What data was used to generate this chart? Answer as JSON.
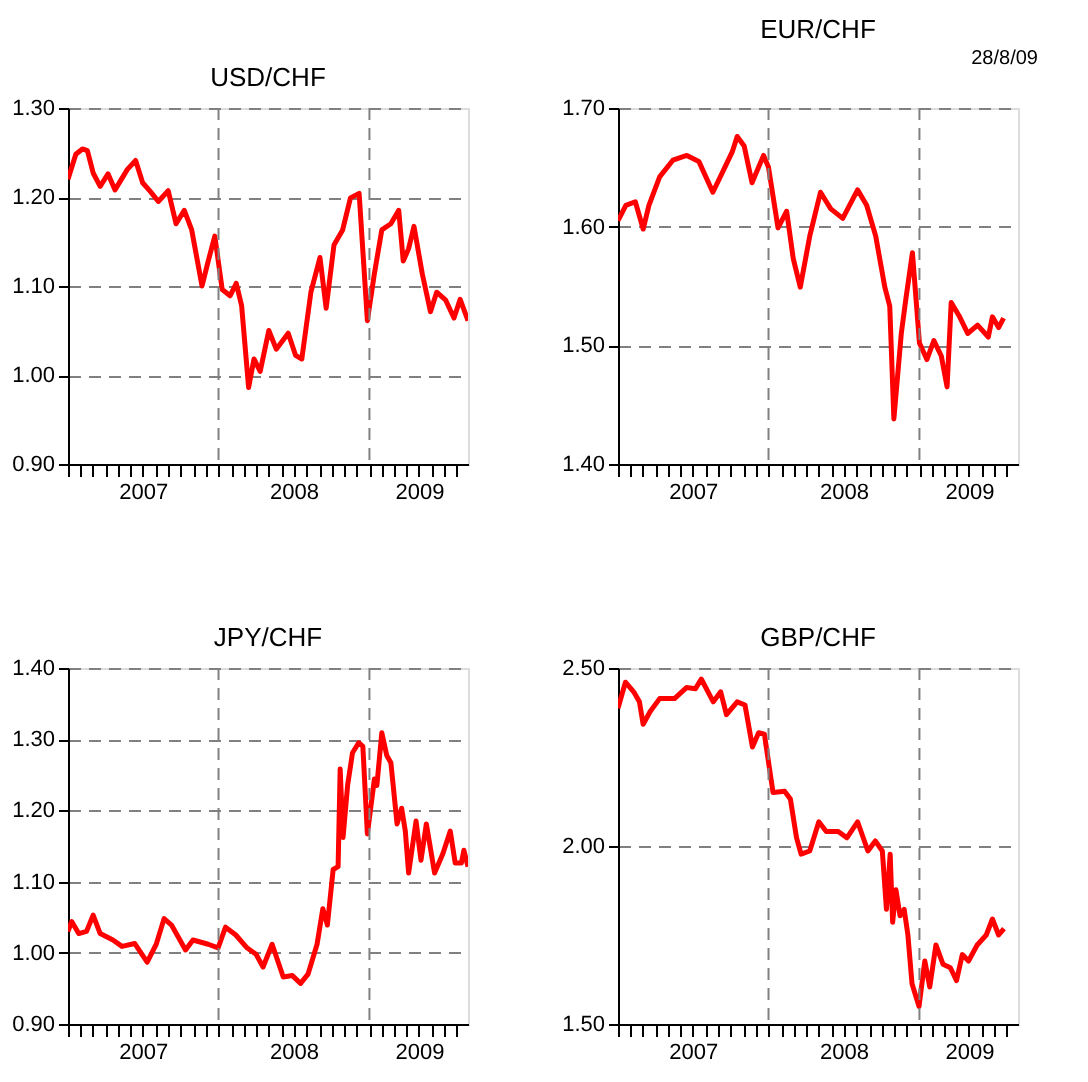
{
  "chart_data": [
    {
      "type": "line",
      "title": "USD/CHF",
      "xlim": [
        "2007-01-01",
        "2009-08-28"
      ],
      "x": [
        "2007-01-01",
        "2007-01-20",
        "2007-02-05",
        "2007-02-17",
        "2007-03-03",
        "2007-03-20",
        "2007-04-08",
        "2007-04-25",
        "2007-05-25",
        "2007-06-14",
        "2007-07-01",
        "2007-07-20",
        "2007-08-08",
        "2007-09-01",
        "2007-09-20",
        "2007-10-10",
        "2007-10-28",
        "2007-11-22",
        "2007-12-07",
        "2007-12-23",
        "2008-01-10",
        "2008-01-29",
        "2008-02-13",
        "2008-02-26",
        "2008-03-14",
        "2008-03-27",
        "2008-04-11",
        "2008-05-02",
        "2008-05-20",
        "2008-06-18",
        "2008-07-06",
        "2008-07-21",
        "2008-08-12",
        "2008-09-03",
        "2008-09-18",
        "2008-10-07",
        "2008-10-28",
        "2008-11-16",
        "2008-12-07",
        "2008-12-27",
        "2009-01-13",
        "2009-01-31",
        "2009-02-22",
        "2009-03-13",
        "2009-03-24",
        "2009-04-06",
        "2009-04-19",
        "2009-05-09",
        "2009-05-29",
        "2009-06-13",
        "2009-07-05",
        "2009-07-25",
        "2009-08-09",
        "2009-08-28"
      ],
      "series": [
        {
          "color": "#ff0000",
          "values": [
            1.22,
            1.248,
            1.254,
            1.252,
            1.227,
            1.212,
            1.226,
            1.208,
            1.231,
            1.241,
            1.216,
            1.206,
            1.195,
            1.207,
            1.17,
            1.185,
            1.163,
            1.1,
            1.128,
            1.156,
            1.096,
            1.089,
            1.103,
            1.078,
            0.986,
            1.018,
            1.004,
            1.05,
            1.029,
            1.047,
            1.022,
            1.018,
            1.093,
            1.132,
            1.075,
            1.146,
            1.163,
            1.199,
            1.204,
            1.061,
            1.114,
            1.163,
            1.17,
            1.185,
            1.128,
            1.142,
            1.167,
            1.114,
            1.071,
            1.093,
            1.084,
            1.064,
            1.085,
            1.061
          ]
        }
      ],
      "ylim": [
        0.9,
        1.3
      ],
      "yticks": [
        {
          "value": 0.9,
          "label": "0.90"
        },
        {
          "value": 1.0,
          "label": "1.00"
        },
        {
          "value": 1.1,
          "label": "1.10"
        },
        {
          "value": 1.2,
          "label": "1.20"
        },
        {
          "value": 1.3,
          "label": "1.30"
        }
      ],
      "xticks": [
        {
          "value": "2007-01-01",
          "label": null
        },
        {
          "value": "2007-02-01",
          "label": null
        },
        {
          "value": "2007-03-01",
          "label": null
        },
        {
          "value": "2007-04-01",
          "label": null
        },
        {
          "value": "2007-05-01",
          "label": null
        },
        {
          "value": "2007-06-01",
          "label": null
        },
        {
          "value": "2007-07-01",
          "label": "2007"
        },
        {
          "value": "2007-08-01",
          "label": null
        },
        {
          "value": "2007-09-01",
          "label": null
        },
        {
          "value": "2007-10-01",
          "label": null
        },
        {
          "value": "2007-11-01",
          "label": null
        },
        {
          "value": "2007-12-01",
          "label": null
        },
        {
          "value": "2008-01-01",
          "label": null
        },
        {
          "value": "2008-02-01",
          "label": null
        },
        {
          "value": "2008-03-01",
          "label": null
        },
        {
          "value": "2008-04-01",
          "label": null
        },
        {
          "value": "2008-05-01",
          "label": null
        },
        {
          "value": "2008-06-01",
          "label": null
        },
        {
          "value": "2008-07-01",
          "label": "2008"
        },
        {
          "value": "2008-08-01",
          "label": null
        },
        {
          "value": "2008-09-01",
          "label": null
        },
        {
          "value": "2008-10-01",
          "label": null
        },
        {
          "value": "2008-11-01",
          "label": null
        },
        {
          "value": "2008-12-01",
          "label": null
        },
        {
          "value": "2009-01-01",
          "label": null
        },
        {
          "value": "2009-02-01",
          "label": null
        },
        {
          "value": "2009-03-01",
          "label": null
        },
        {
          "value": "2009-04-01",
          "label": null
        },
        {
          "value": "2009-05-01",
          "label": "2009"
        },
        {
          "value": "2009-06-01",
          "label": null
        },
        {
          "value": "2009-07-01",
          "label": null
        },
        {
          "value": "2009-08-01",
          "label": null
        }
      ],
      "grid": "y",
      "ref_lines": [
        {
          "axis": "x",
          "value": "2008-01-01",
          "color": "#808080",
          "line_style": "dashed"
        },
        {
          "axis": "x",
          "value": "2009-01-01",
          "color": "#808080",
          "line_style": "dashed"
        }
      ],
      "line_style": "solid"
    },
    {
      "type": "line",
      "title": "EUR/CHF",
      "annotations": [
        "28/8/09"
      ],
      "xlim": [
        "2007-01-01",
        "2009-08-28"
      ],
      "x": [
        "2007-01-01",
        "2007-01-20",
        "2007-02-12",
        "2007-03-03",
        "2007-03-17",
        "2007-04-12",
        "2007-05-14",
        "2007-06-17",
        "2007-07-16",
        "2007-08-19",
        "2007-09-13",
        "2007-10-05",
        "2007-10-17",
        "2007-11-03",
        "2007-11-22",
        "2007-12-20",
        "2008-01-01",
        "2008-01-24",
        "2008-02-14",
        "2008-03-01",
        "2008-03-18",
        "2008-04-10",
        "2008-05-06",
        "2008-05-31",
        "2008-06-29",
        "2008-08-04",
        "2008-08-26",
        "2008-09-17",
        "2008-10-09",
        "2008-10-21",
        "2008-10-31",
        "2008-11-18",
        "2008-11-29",
        "2008-12-15",
        "2009-01-01",
        "2009-01-19",
        "2009-02-05",
        "2009-02-23",
        "2009-03-09",
        "2009-03-19",
        "2009-04-07",
        "2009-04-28",
        "2009-05-22",
        "2009-06-17",
        "2009-06-27",
        "2009-07-12",
        "2009-07-24"
      ],
      "series": [
        {
          "color": "#ff0000",
          "values": [
            1.605,
            1.618,
            1.621,
            1.598,
            1.618,
            1.642,
            1.656,
            1.66,
            1.655,
            1.629,
            1.647,
            1.663,
            1.676,
            1.668,
            1.637,
            1.66,
            1.65,
            1.599,
            1.613,
            1.573,
            1.549,
            1.592,
            1.629,
            1.615,
            1.607,
            1.631,
            1.618,
            1.592,
            1.549,
            1.533,
            1.438,
            1.51,
            1.539,
            1.578,
            1.502,
            1.488,
            1.504,
            1.491,
            1.465,
            1.536,
            1.525,
            1.51,
            1.517,
            1.507,
            1.524,
            1.515,
            1.523
          ]
        }
      ],
      "ylim": [
        1.4,
        1.7
      ],
      "yticks": [
        {
          "value": 1.4,
          "label": "1.40"
        },
        {
          "value": 1.5,
          "label": "1.50"
        },
        {
          "value": 1.6,
          "label": "1.60"
        },
        {
          "value": 1.7,
          "label": "1.70"
        }
      ],
      "xticks": [
        {
          "value": "2007-01-01",
          "label": null
        },
        {
          "value": "2007-02-01",
          "label": null
        },
        {
          "value": "2007-03-01",
          "label": null
        },
        {
          "value": "2007-04-01",
          "label": null
        },
        {
          "value": "2007-05-01",
          "label": null
        },
        {
          "value": "2007-06-01",
          "label": null
        },
        {
          "value": "2007-07-01",
          "label": "2007"
        },
        {
          "value": "2007-08-01",
          "label": null
        },
        {
          "value": "2007-09-01",
          "label": null
        },
        {
          "value": "2007-10-01",
          "label": null
        },
        {
          "value": "2007-11-01",
          "label": null
        },
        {
          "value": "2007-12-01",
          "label": null
        },
        {
          "value": "2008-01-01",
          "label": null
        },
        {
          "value": "2008-02-01",
          "label": null
        },
        {
          "value": "2008-03-01",
          "label": null
        },
        {
          "value": "2008-04-01",
          "label": null
        },
        {
          "value": "2008-05-01",
          "label": null
        },
        {
          "value": "2008-06-01",
          "label": null
        },
        {
          "value": "2008-07-01",
          "label": "2008"
        },
        {
          "value": "2008-08-01",
          "label": null
        },
        {
          "value": "2008-09-01",
          "label": null
        },
        {
          "value": "2008-10-01",
          "label": null
        },
        {
          "value": "2008-11-01",
          "label": null
        },
        {
          "value": "2008-12-01",
          "label": null
        },
        {
          "value": "2009-01-01",
          "label": null
        },
        {
          "value": "2009-02-01",
          "label": null
        },
        {
          "value": "2009-03-01",
          "label": null
        },
        {
          "value": "2009-04-01",
          "label": null
        },
        {
          "value": "2009-05-01",
          "label": "2009"
        },
        {
          "value": "2009-06-01",
          "label": null
        },
        {
          "value": "2009-07-01",
          "label": null
        },
        {
          "value": "2009-08-01",
          "label": null
        }
      ],
      "grid": "y",
      "ref_lines": [
        {
          "axis": "x",
          "value": "2008-01-01",
          "color": "#808080",
          "line_style": "dashed"
        },
        {
          "axis": "x",
          "value": "2009-01-01",
          "color": "#808080",
          "line_style": "dashed"
        }
      ],
      "line_style": "solid"
    },
    {
      "type": "line",
      "title": "JPY/CHF",
      "xlim": [
        "2007-01-01",
        "2009-08-28"
      ],
      "x": [
        "2007-01-01",
        "2007-01-10",
        "2007-01-27",
        "2007-02-15",
        "2007-03-03",
        "2007-03-20",
        "2007-04-20",
        "2007-05-12",
        "2007-06-12",
        "2007-07-12",
        "2007-08-03",
        "2007-08-22",
        "2007-09-09",
        "2007-10-13",
        "2007-10-31",
        "2007-12-07",
        "2007-12-31",
        "2008-01-18",
        "2008-02-12",
        "2008-03-10",
        "2008-04-01",
        "2008-04-18",
        "2008-05-10",
        "2008-06-06",
        "2008-06-28",
        "2008-07-18",
        "2008-08-05",
        "2008-08-27",
        "2008-09-10",
        "2008-09-21",
        "2008-10-05",
        "2008-10-17",
        "2008-10-22",
        "2008-10-29",
        "2008-11-09",
        "2008-11-21",
        "2008-12-06",
        "2008-12-16",
        "2008-12-27",
        "2009-01-13",
        "2009-01-19",
        "2009-01-31",
        "2009-02-12",
        "2009-02-22",
        "2009-03-09",
        "2009-03-20",
        "2009-03-29",
        "2009-04-06",
        "2009-04-24",
        "2009-05-06",
        "2009-05-19",
        "2009-06-08",
        "2009-06-28",
        "2009-07-16",
        "2009-07-28",
        "2009-08-12",
        "2009-08-18",
        "2009-08-28"
      ],
      "series": [
        {
          "color": "#ff0000",
          "values": [
            1.03,
            1.044,
            1.027,
            1.03,
            1.053,
            1.027,
            1.018,
            1.009,
            1.013,
            0.987,
            1.012,
            1.048,
            1.039,
            1.004,
            1.018,
            1.012,
            1.007,
            1.036,
            1.025,
            1.007,
            0.998,
            0.98,
            1.012,
            0.966,
            0.968,
            0.957,
            0.97,
            1.012,
            1.062,
            1.039,
            1.117,
            1.121,
            1.258,
            1.162,
            1.235,
            1.281,
            1.295,
            1.29,
            1.167,
            1.244,
            1.235,
            1.309,
            1.277,
            1.267,
            1.181,
            1.203,
            1.171,
            1.112,
            1.185,
            1.13,
            1.181,
            1.112,
            1.139,
            1.171,
            1.126,
            1.126,
            1.144,
            1.121
          ]
        }
      ],
      "ylim": [
        0.9,
        1.4
      ],
      "yticks": [
        {
          "value": 0.9,
          "label": "0.90"
        },
        {
          "value": 1.0,
          "label": "1.00"
        },
        {
          "value": 1.1,
          "label": "1.10"
        },
        {
          "value": 1.2,
          "label": "1.20"
        },
        {
          "value": 1.3,
          "label": "1.30"
        },
        {
          "value": 1.4,
          "label": "1.40"
        }
      ],
      "xticks": [
        {
          "value": "2007-01-01",
          "label": null
        },
        {
          "value": "2007-02-01",
          "label": null
        },
        {
          "value": "2007-03-01",
          "label": null
        },
        {
          "value": "2007-04-01",
          "label": null
        },
        {
          "value": "2007-05-01",
          "label": null
        },
        {
          "value": "2007-06-01",
          "label": null
        },
        {
          "value": "2007-07-01",
          "label": "2007"
        },
        {
          "value": "2007-08-01",
          "label": null
        },
        {
          "value": "2007-09-01",
          "label": null
        },
        {
          "value": "2007-10-01",
          "label": null
        },
        {
          "value": "2007-11-01",
          "label": null
        },
        {
          "value": "2007-12-01",
          "label": null
        },
        {
          "value": "2008-01-01",
          "label": null
        },
        {
          "value": "2008-02-01",
          "label": null
        },
        {
          "value": "2008-03-01",
          "label": null
        },
        {
          "value": "2008-04-01",
          "label": null
        },
        {
          "value": "2008-05-01",
          "label": null
        },
        {
          "value": "2008-06-01",
          "label": null
        },
        {
          "value": "2008-07-01",
          "label": "2008"
        },
        {
          "value": "2008-08-01",
          "label": null
        },
        {
          "value": "2008-09-01",
          "label": null
        },
        {
          "value": "2008-10-01",
          "label": null
        },
        {
          "value": "2008-11-01",
          "label": null
        },
        {
          "value": "2008-12-01",
          "label": null
        },
        {
          "value": "2009-01-01",
          "label": null
        },
        {
          "value": "2009-02-01",
          "label": null
        },
        {
          "value": "2009-03-01",
          "label": null
        },
        {
          "value": "2009-04-01",
          "label": null
        },
        {
          "value": "2009-05-01",
          "label": "2009"
        },
        {
          "value": "2009-06-01",
          "label": null
        },
        {
          "value": "2009-07-01",
          "label": null
        },
        {
          "value": "2009-08-01",
          "label": null
        }
      ],
      "grid": "y",
      "ref_lines": [
        {
          "axis": "x",
          "value": "2008-01-01",
          "color": "#808080",
          "line_style": "dashed"
        },
        {
          "axis": "x",
          "value": "2009-01-01",
          "color": "#808080",
          "line_style": "dashed"
        }
      ],
      "line_style": "solid"
    },
    {
      "type": "line",
      "title": "GBP/CHF",
      "xlim": [
        "2007-01-01",
        "2009-08-28"
      ],
      "x": [
        "2007-01-01",
        "2007-01-19",
        "2007-02-08",
        "2007-02-22",
        "2007-03-03",
        "2007-03-20",
        "2007-04-12",
        "2007-05-18",
        "2007-06-16",
        "2007-07-08",
        "2007-07-22",
        "2007-08-20",
        "2007-09-07",
        "2007-09-21",
        "2007-10-17",
        "2007-11-05",
        "2007-11-23",
        "2007-12-08",
        "2007-12-22",
        "2008-01-12",
        "2008-02-09",
        "2008-02-23",
        "2008-03-09",
        "2008-03-20",
        "2008-04-10",
        "2008-05-02",
        "2008-05-20",
        "2008-06-18",
        "2008-07-09",
        "2008-08-04",
        "2008-08-29",
        "2008-09-16",
        "2008-10-03",
        "2008-10-13",
        "2008-10-22",
        "2008-10-28",
        "2008-11-05",
        "2008-11-15",
        "2008-11-25",
        "2008-12-04",
        "2008-12-14",
        "2008-12-31",
        "2009-01-14",
        "2009-01-26",
        "2009-02-10",
        "2009-02-27",
        "2009-03-17",
        "2009-04-01",
        "2009-04-15",
        "2009-04-30",
        "2009-05-21",
        "2009-06-12",
        "2009-06-27",
        "2009-07-12",
        "2009-07-25"
      ],
      "series": [
        {
          "color": "#ff0000",
          "values": [
            2.387,
            2.46,
            2.433,
            2.405,
            2.342,
            2.378,
            2.414,
            2.414,
            2.445,
            2.442,
            2.469,
            2.405,
            2.433,
            2.369,
            2.405,
            2.396,
            2.278,
            2.318,
            2.314,
            2.15,
            2.154,
            2.132,
            2.023,
            1.977,
            1.986,
            2.068,
            2.041,
            2.041,
            2.023,
            2.068,
            1.986,
            2.014,
            1.986,
            1.822,
            1.977,
            1.786,
            1.877,
            1.804,
            1.822,
            1.75,
            1.613,
            1.549,
            1.677,
            1.604,
            1.722,
            1.668,
            1.658,
            1.622,
            1.695,
            1.677,
            1.722,
            1.75,
            1.795,
            1.75,
            1.768
          ]
        }
      ],
      "ylim": [
        1.5,
        2.5
      ],
      "yticks": [
        {
          "value": 1.5,
          "label": "1.50"
        },
        {
          "value": 2.0,
          "label": "2.00"
        },
        {
          "value": 2.5,
          "label": "2.50"
        }
      ],
      "xticks": [
        {
          "value": "2007-01-01",
          "label": null
        },
        {
          "value": "2007-02-01",
          "label": null
        },
        {
          "value": "2007-03-01",
          "label": null
        },
        {
          "value": "2007-04-01",
          "label": null
        },
        {
          "value": "2007-05-01",
          "label": null
        },
        {
          "value": "2007-06-01",
          "label": null
        },
        {
          "value": "2007-07-01",
          "label": "2007"
        },
        {
          "value": "2007-08-01",
          "label": null
        },
        {
          "value": "2007-09-01",
          "label": null
        },
        {
          "value": "2007-10-01",
          "label": null
        },
        {
          "value": "2007-11-01",
          "label": null
        },
        {
          "value": "2007-12-01",
          "label": null
        },
        {
          "value": "2008-01-01",
          "label": null
        },
        {
          "value": "2008-02-01",
          "label": null
        },
        {
          "value": "2008-03-01",
          "label": null
        },
        {
          "value": "2008-04-01",
          "label": null
        },
        {
          "value": "2008-05-01",
          "label": null
        },
        {
          "value": "2008-06-01",
          "label": null
        },
        {
          "value": "2008-07-01",
          "label": "2008"
        },
        {
          "value": "2008-08-01",
          "label": null
        },
        {
          "value": "2008-09-01",
          "label": null
        },
        {
          "value": "2008-10-01",
          "label": null
        },
        {
          "value": "2008-11-01",
          "label": null
        },
        {
          "value": "2008-12-01",
          "label": null
        },
        {
          "value": "2009-01-01",
          "label": null
        },
        {
          "value": "2009-02-01",
          "label": null
        },
        {
          "value": "2009-03-01",
          "label": null
        },
        {
          "value": "2009-04-01",
          "label": null
        },
        {
          "value": "2009-05-01",
          "label": "2009"
        },
        {
          "value": "2009-06-01",
          "label": null
        },
        {
          "value": "2009-07-01",
          "label": null
        },
        {
          "value": "2009-08-01",
          "label": null
        }
      ],
      "grid": "y",
      "ref_lines": [
        {
          "axis": "x",
          "value": "2008-01-01",
          "color": "#808080",
          "line_style": "dashed"
        },
        {
          "axis": "x",
          "value": "2009-01-01",
          "color": "#808080",
          "line_style": "dashed"
        }
      ],
      "line_style": "solid"
    }
  ]
}
